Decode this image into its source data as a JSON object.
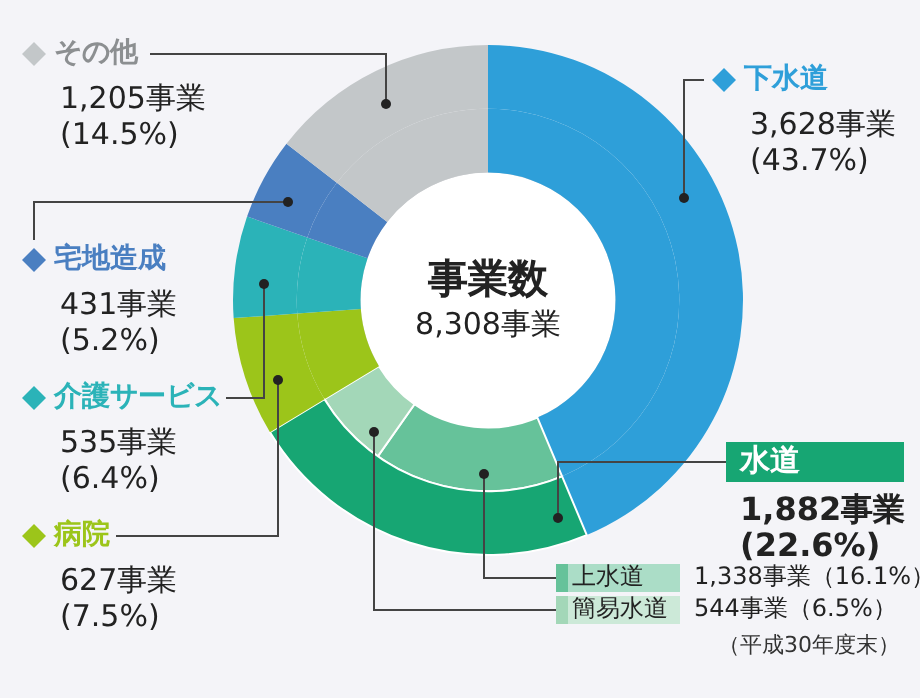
{
  "chart_data": {
    "type": "donut",
    "title": "事業数",
    "subtitle": "8,308事業",
    "categories": [
      "下水道",
      "水道",
      "上水道",
      "簡易水道",
      "病院",
      "介護サービス",
      "宅地造成",
      "その他"
    ],
    "series": [
      {
        "values": [
          3628,
          1882,
          null,
          null,
          627,
          535,
          431,
          1205
        ],
        "colors": [
          "#2e9fd9",
          "#17a673",
          null,
          null,
          "#9cc51a",
          "#2bb3b8",
          "#4a7fc1",
          "#c3c7c9"
        ],
        "value_labels": [
          "3,628事業\n(43.7%)",
          "1,882事業\n(22.6%)",
          null,
          null,
          "627事業\n(7.5%)",
          "535事業\n(6.4%)",
          "431事業\n(5.2%)",
          "1,205事業\n(14.5%)"
        ]
      },
      {
        "values": [
          3628,
          null,
          1338,
          544,
          627,
          535,
          431,
          1205
        ],
        "colors": [
          "#2e9fd9",
          null,
          "#66c29a",
          "#a3d7b8",
          "#9cc51a",
          "#2bb3b8",
          "#4a7fc1",
          "#c3c7c9"
        ],
        "value_labels": [
          null,
          null,
          "1,338事業（16.1%）",
          "544事業（6.5%）",
          null,
          null,
          null,
          null
        ]
      }
    ],
    "legend": "left",
    "annotations": [
      "（平成30年度末）"
    ]
  }
}
